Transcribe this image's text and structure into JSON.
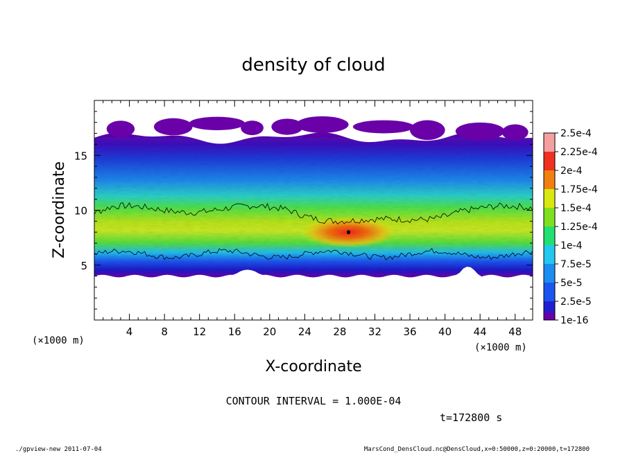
{
  "chart_data": {
    "type": "heatmap",
    "title": "density of cloud",
    "xlabel": "X-coordinate",
    "ylabel": "Z-coordinate",
    "x_unit": "(×1000 m)",
    "y_unit": "(×1000 m)",
    "xlim": [
      0,
      50
    ],
    "ylim": [
      0,
      20
    ],
    "x_ticks": [
      4,
      8,
      12,
      16,
      20,
      24,
      28,
      32,
      36,
      40,
      44,
      48
    ],
    "y_ticks": [
      5,
      10,
      15
    ],
    "colorbar": {
      "labels": [
        "1e-16",
        "2.5e-5",
        "5e-5",
        "7.5e-5",
        "1e-4",
        "1.25e-4",
        "1.5e-4",
        "1.75e-4",
        "2e-4",
        "2.25e-4",
        "2.5e-4"
      ],
      "colors": [
        "#6a00a8",
        "#2020d0",
        "#1c55ee",
        "#1c8cf0",
        "#22c8ee",
        "#22e070",
        "#7fe020",
        "#d8e810",
        "#f08010",
        "#f03020",
        "#f4a0a0"
      ]
    },
    "contour_interval_text": "CONTOUR INTERVAL = 1.000E-04",
    "time_text": "t=172800 s",
    "cloud_layer": {
      "cloud_base_z": [
        4,
        4.3
      ],
      "cloud_top_z": [
        16.2,
        17
      ],
      "peak_value": 0.00022,
      "peak_location": {
        "x": 29,
        "z": 8
      }
    }
  },
  "footer": {
    "left": "./gpview-new  2011-07-04",
    "right": "MarsCond_DensCloud.nc@DensCloud,x=0:50000,z=0:20000,t=172800"
  }
}
